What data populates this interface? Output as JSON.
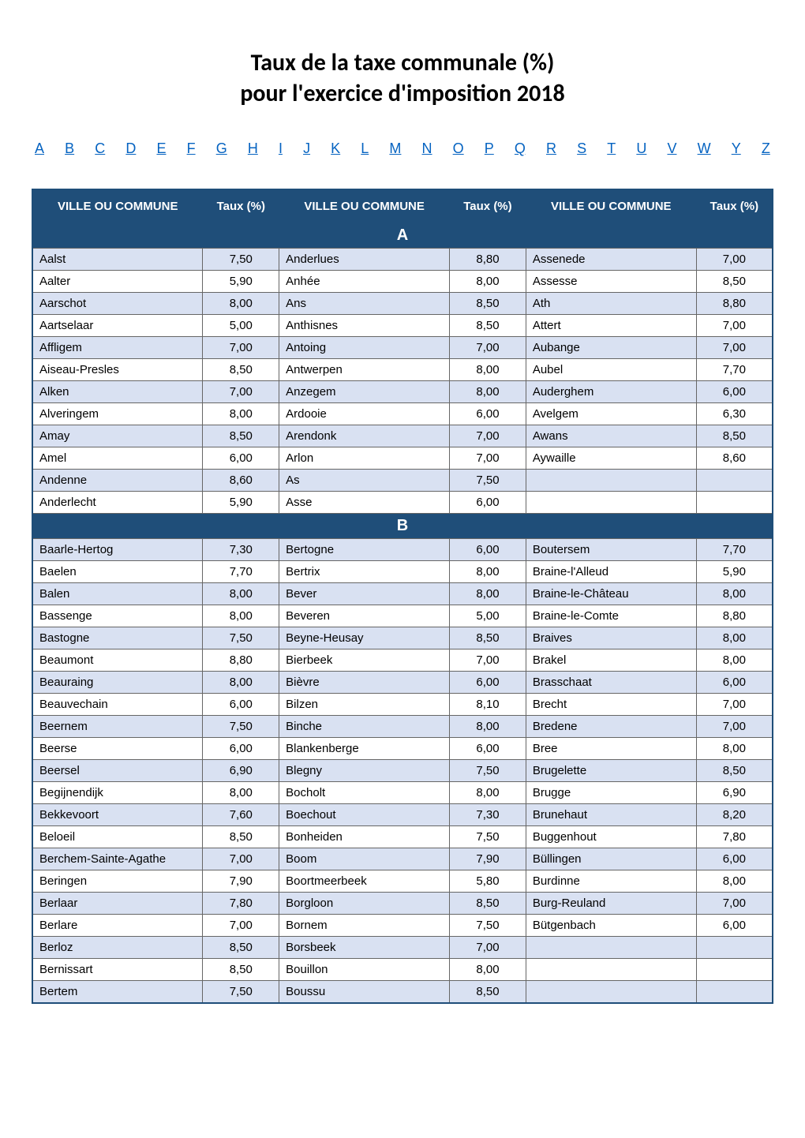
{
  "title_line1": "Taux de la taxe communale (%)",
  "title_line2": "pour l'exercice d'imposition 2018",
  "alpha_nav": [
    "A",
    "B",
    "C",
    "D",
    "E",
    "F",
    "G",
    "H",
    "I",
    "J",
    "K",
    "L",
    "M",
    "N",
    "O",
    "P",
    "Q",
    "R",
    "S",
    "T",
    "U",
    "V",
    "W",
    "Y",
    "Z"
  ],
  "headers": {
    "commune": "VILLE OU COMMUNE",
    "taux": "Taux (%)"
  },
  "colors": {
    "header_bg": "#1f4e79",
    "header_fg": "#ffffff",
    "row_odd_bg": "#d9e1f2",
    "row_even_bg": "#ffffff",
    "link_color": "#0563c1",
    "border_color": "#666666"
  },
  "sections": [
    {
      "letter": "A",
      "rows": [
        {
          "c1": "Aalst",
          "r1": "7,50",
          "c2": "Anderlues",
          "r2": "8,80",
          "c3": "Assenede",
          "r3": "7,00"
        },
        {
          "c1": "Aalter",
          "r1": "5,90",
          "c2": "Anhée",
          "r2": "8,00",
          "c3": "Assesse",
          "r3": "8,50"
        },
        {
          "c1": "Aarschot",
          "r1": "8,00",
          "c2": "Ans",
          "r2": "8,50",
          "c3": "Ath",
          "r3": "8,80"
        },
        {
          "c1": "Aartselaar",
          "r1": "5,00",
          "c2": "Anthisnes",
          "r2": "8,50",
          "c3": "Attert",
          "r3": "7,00"
        },
        {
          "c1": "Affligem",
          "r1": "7,00",
          "c2": "Antoing",
          "r2": "7,00",
          "c3": "Aubange",
          "r3": "7,00"
        },
        {
          "c1": "Aiseau-Presles",
          "r1": "8,50",
          "c2": "Antwerpen",
          "r2": "8,00",
          "c3": "Aubel",
          "r3": "7,70"
        },
        {
          "c1": "Alken",
          "r1": "7,00",
          "c2": "Anzegem",
          "r2": "8,00",
          "c3": "Auderghem",
          "r3": "6,00"
        },
        {
          "c1": "Alveringem",
          "r1": "8,00",
          "c2": "Ardooie",
          "r2": "6,00",
          "c3": "Avelgem",
          "r3": "6,30"
        },
        {
          "c1": "Amay",
          "r1": "8,50",
          "c2": "Arendonk",
          "r2": "7,00",
          "c3": "Awans",
          "r3": "8,50"
        },
        {
          "c1": "Amel",
          "r1": "6,00",
          "c2": "Arlon",
          "r2": "7,00",
          "c3": "Aywaille",
          "r3": "8,60"
        },
        {
          "c1": "Andenne",
          "r1": "8,60",
          "c2": "As",
          "r2": "7,50",
          "c3": "",
          "r3": ""
        },
        {
          "c1": "Anderlecht",
          "r1": "5,90",
          "c2": "Asse",
          "r2": "6,00",
          "c3": "",
          "r3": ""
        }
      ]
    },
    {
      "letter": "B",
      "rows": [
        {
          "c1": "Baarle-Hertog",
          "r1": "7,30",
          "c2": "Bertogne",
          "r2": "6,00",
          "c3": "Boutersem",
          "r3": "7,70"
        },
        {
          "c1": "Baelen",
          "r1": "7,70",
          "c2": "Bertrix",
          "r2": "8,00",
          "c3": "Braine-l'Alleud",
          "r3": "5,90"
        },
        {
          "c1": "Balen",
          "r1": "8,00",
          "c2": "Bever",
          "r2": "8,00",
          "c3": "Braine-le-Château",
          "r3": "8,00"
        },
        {
          "c1": "Bassenge",
          "r1": "8,00",
          "c2": "Beveren",
          "r2": "5,00",
          "c3": "Braine-le-Comte",
          "r3": "8,80"
        },
        {
          "c1": "Bastogne",
          "r1": "7,50",
          "c2": "Beyne-Heusay",
          "r2": "8,50",
          "c3": "Braives",
          "r3": "8,00"
        },
        {
          "c1": "Beaumont",
          "r1": "8,80",
          "c2": "Bierbeek",
          "r2": "7,00",
          "c3": "Brakel",
          "r3": "8,00"
        },
        {
          "c1": "Beauraing",
          "r1": "8,00",
          "c2": "Bièvre",
          "r2": "6,00",
          "c3": "Brasschaat",
          "r3": "6,00"
        },
        {
          "c1": "Beauvechain",
          "r1": "6,00",
          "c2": "Bilzen",
          "r2": "8,10",
          "c3": "Brecht",
          "r3": "7,00"
        },
        {
          "c1": "Beernem",
          "r1": "7,50",
          "c2": "Binche",
          "r2": "8,00",
          "c3": "Bredene",
          "r3": "7,00"
        },
        {
          "c1": "Beerse",
          "r1": "6,00",
          "c2": "Blankenberge",
          "r2": "6,00",
          "c3": "Bree",
          "r3": "8,00"
        },
        {
          "c1": "Beersel",
          "r1": "6,90",
          "c2": "Blegny",
          "r2": "7,50",
          "c3": "Brugelette",
          "r3": "8,50"
        },
        {
          "c1": "Begijnendijk",
          "r1": "8,00",
          "c2": "Bocholt",
          "r2": "8,00",
          "c3": "Brugge",
          "r3": "6,90"
        },
        {
          "c1": "Bekkevoort",
          "r1": "7,60",
          "c2": "Boechout",
          "r2": "7,30",
          "c3": "Brunehaut",
          "r3": "8,20"
        },
        {
          "c1": "Beloeil",
          "r1": "8,50",
          "c2": "Bonheiden",
          "r2": "7,50",
          "c3": "Buggenhout",
          "r3": "7,80"
        },
        {
          "c1": "Berchem-Sainte-Agathe",
          "r1": "7,00",
          "c2": "Boom",
          "r2": "7,90",
          "c3": "Büllingen",
          "r3": "6,00"
        },
        {
          "c1": "Beringen",
          "r1": "7,90",
          "c2": "Boortmeerbeek",
          "r2": "5,80",
          "c3": "Burdinne",
          "r3": "8,00"
        },
        {
          "c1": "Berlaar",
          "r1": "7,80",
          "c2": "Borgloon",
          "r2": "8,50",
          "c3": "Burg-Reuland",
          "r3": "7,00"
        },
        {
          "c1": "Berlare",
          "r1": "7,00",
          "c2": "Bornem",
          "r2": "7,50",
          "c3": "Bütgenbach",
          "r3": "6,00"
        },
        {
          "c1": "Berloz",
          "r1": "8,50",
          "c2": "Borsbeek",
          "r2": "7,00",
          "c3": "",
          "r3": ""
        },
        {
          "c1": "Bernissart",
          "r1": "8,50",
          "c2": "Bouillon",
          "r2": "8,00",
          "c3": "",
          "r3": ""
        },
        {
          "c1": "Bertem",
          "r1": "7,50",
          "c2": "Boussu",
          "r2": "8,50",
          "c3": "",
          "r3": ""
        }
      ]
    }
  ]
}
